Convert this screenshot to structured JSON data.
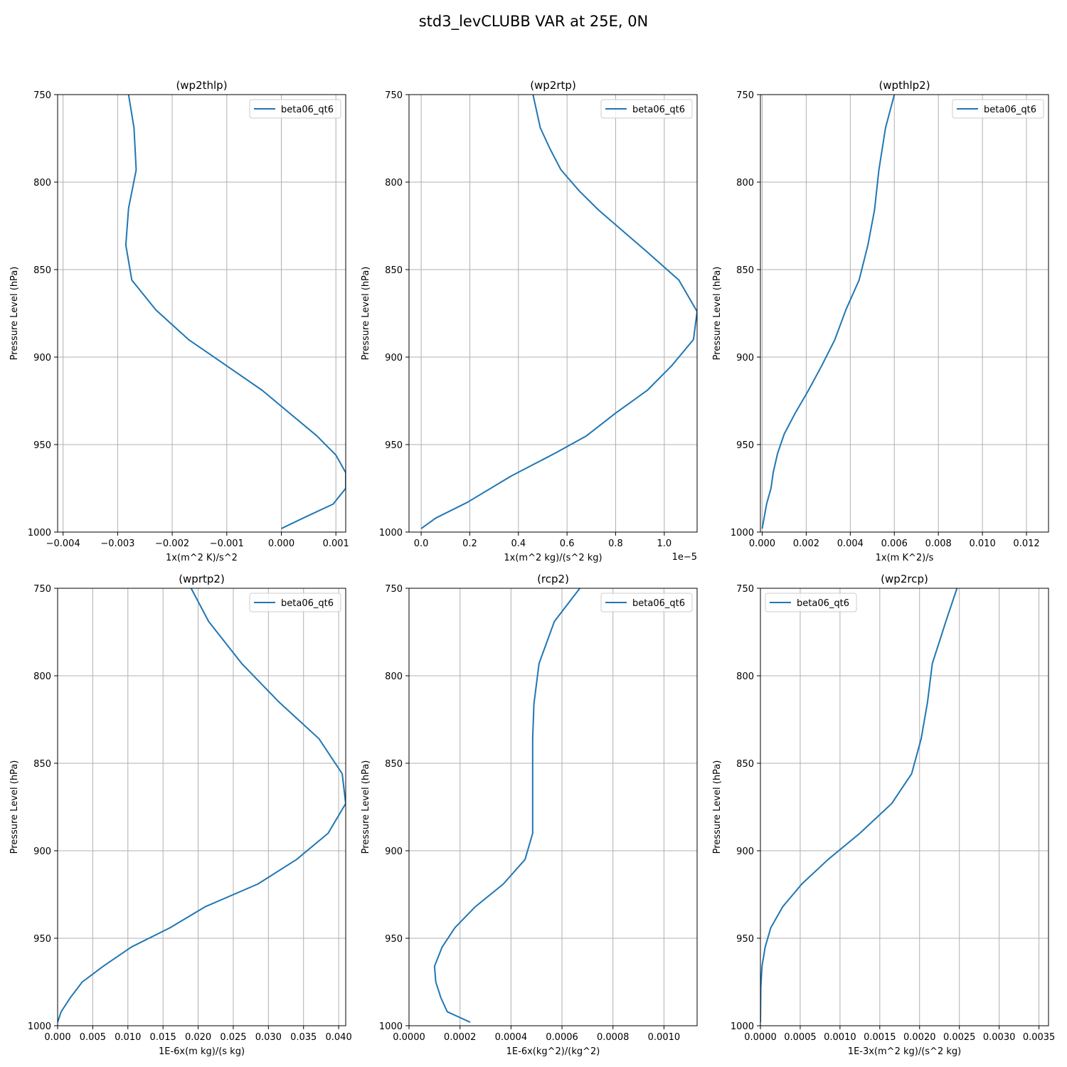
{
  "figure_title": "std3_levCLUBB VAR at 25E, 0N",
  "chart_data": [
    {
      "type": "line",
      "title": "(wp2thlp)",
      "xlabel": "1x(m^2 K)/s^2",
      "ylabel": "Pressure Level (hPa)",
      "xlim": [
        -0.0041,
        0.00118
      ],
      "ylim": [
        1000,
        750
      ],
      "xticks": [
        -0.004,
        -0.003,
        -0.002,
        -0.001,
        0.0,
        0.001
      ],
      "xtick_labels": [
        "−0.004",
        "−0.003",
        "−0.002",
        "−0.001",
        "0.000",
        "0.001"
      ],
      "x_offset_label": "",
      "yticks": [
        750,
        800,
        850,
        900,
        950,
        1000
      ],
      "grid": true,
      "legend_loc": "upper-right",
      "series": [
        {
          "name": "beta06_qt6",
          "color": "#1f77b4",
          "x": [
            -0.0028,
            -0.0027,
            -0.00266,
            -0.0028,
            -0.00285,
            -0.00274,
            -0.0023,
            -0.0017,
            -0.001,
            -0.00035,
            0.00015,
            0.00065,
            0.001,
            0.00118,
            0.00118,
            0.00095,
            0.0004,
            0.0
          ],
          "y": [
            750,
            769,
            793,
            815,
            836,
            856,
            873,
            890,
            905,
            919,
            932,
            945,
            956,
            966,
            975,
            984,
            992,
            998
          ]
        }
      ]
    },
    {
      "type": "line",
      "title": "(wp2rtp)",
      "xlabel": "1x(m^2 kg)/(s^2 kg)",
      "ylabel": "Pressure Level (hPa)",
      "xlim": [
        -0.05,
        1.135
      ],
      "ylim": [
        1000,
        750
      ],
      "xticks": [
        0.0,
        0.2,
        0.4,
        0.6,
        0.8,
        1.0
      ],
      "xtick_labels": [
        "0.0",
        "0.2",
        "0.4",
        "0.6",
        "0.8",
        "1.0"
      ],
      "x_offset_label": "1e−5",
      "yticks": [
        750,
        800,
        850,
        900,
        950,
        1000
      ],
      "grid": true,
      "legend_loc": "upper-right",
      "series": [
        {
          "name": "beta06_qt6",
          "color": "#1f77b4",
          "x": [
            0.46,
            0.49,
            0.53,
            0.575,
            0.65,
            0.73,
            0.83,
            0.93,
            1.06,
            1.135,
            1.12,
            1.03,
            0.93,
            0.8,
            0.68,
            0.55,
            0.37,
            0.19,
            0.06,
            0.0
          ],
          "y": [
            750,
            769,
            781,
            793,
            805,
            816,
            828,
            840,
            856,
            874,
            890,
            905,
            919,
            932,
            945,
            955,
            968,
            983,
            992,
            998
          ]
        }
      ]
    },
    {
      "type": "line",
      "title": "(wpthlp2)",
      "xlabel": "1x(m K^2)/s",
      "ylabel": "Pressure Level (hPa)",
      "xlim": [
        -8e-05,
        0.013
      ],
      "ylim": [
        1000,
        750
      ],
      "xticks": [
        0.0,
        0.002,
        0.004,
        0.006,
        0.008,
        0.01,
        0.012
      ],
      "xtick_labels": [
        "0.000",
        "0.002",
        "0.004",
        "0.006",
        "0.008",
        "0.010",
        "0.012"
      ],
      "x_offset_label": "",
      "yticks": [
        750,
        800,
        850,
        900,
        950,
        1000
      ],
      "grid": true,
      "legend_loc": "upper-right",
      "series": [
        {
          "name": "beta06_qt6",
          "color": "#1f77b4",
          "x": [
            0.006,
            0.0056,
            0.0053,
            0.0051,
            0.0048,
            0.0044,
            0.0038,
            0.0033,
            0.0027,
            0.0021,
            0.0015,
            0.001,
            0.0007,
            0.0005,
            0.0004,
            0.0002,
            0.0
          ],
          "y": [
            750,
            769,
            793,
            816,
            836,
            856,
            873,
            890,
            905,
            919,
            932,
            944,
            955,
            966,
            975,
            984,
            998
          ]
        }
      ]
    },
    {
      "type": "line",
      "title": "(wprtp2)",
      "xlabel": "1E-6x(m kg)/(s kg)",
      "ylabel": "Pressure Level (hPa)",
      "xlim": [
        0.0,
        0.041
      ],
      "ylim": [
        1000,
        750
      ],
      "xticks": [
        0.0,
        0.005,
        0.01,
        0.015,
        0.02,
        0.025,
        0.03,
        0.035,
        0.04
      ],
      "xtick_labels": [
        "0.000",
        "0.005",
        "0.010",
        "0.015",
        "0.020",
        "0.025",
        "0.030",
        "0.035",
        "0.040"
      ],
      "x_offset_label": "",
      "yticks": [
        750,
        800,
        850,
        900,
        950,
        1000
      ],
      "grid": true,
      "legend_loc": "upper-right",
      "series": [
        {
          "name": "beta06_qt6",
          "color": "#1f77b4",
          "x": [
            0.019,
            0.0215,
            0.0262,
            0.0315,
            0.0372,
            0.0405,
            0.041,
            0.0385,
            0.034,
            0.0285,
            0.021,
            0.016,
            0.0105,
            0.0065,
            0.0035,
            0.0018,
            0.0005,
            0.0
          ],
          "y": [
            750,
            769,
            793,
            815,
            836,
            856,
            873,
            890,
            905,
            919,
            932,
            944,
            955,
            966,
            975,
            984,
            992,
            998
          ]
        }
      ]
    },
    {
      "type": "line",
      "title": "(rcp2)",
      "xlabel": "1E-6x(kg^2)/(kg^2)",
      "ylabel": "Pressure Level (hPa)",
      "xlim": [
        0.0,
        0.00113
      ],
      "ylim": [
        1000,
        750
      ],
      "xticks": [
        0.0,
        0.0002,
        0.0004,
        0.0006,
        0.0008,
        0.001
      ],
      "xtick_labels": [
        "0.0000",
        "0.0002",
        "0.0004",
        "0.0006",
        "0.0008",
        "0.0010"
      ],
      "x_offset_label": "",
      "yticks": [
        750,
        800,
        850,
        900,
        950,
        1000
      ],
      "grid": true,
      "legend_loc": "upper-right",
      "series": [
        {
          "name": "beta06_qt6",
          "color": "#1f77b4",
          "x": [
            0.00067,
            0.00057,
            0.00051,
            0.00049,
            0.000485,
            0.000485,
            0.000485,
            0.000455,
            0.00037,
            0.00026,
            0.00018,
            0.00013,
            0.0001,
            0.000105,
            0.000125,
            0.00015,
            0.00024
          ],
          "y": [
            750,
            769,
            793,
            816,
            836,
            856,
            890,
            905,
            919,
            932,
            944,
            955,
            966,
            975,
            984,
            992,
            998
          ]
        }
      ]
    },
    {
      "type": "line",
      "title": "(wp2rcp)",
      "xlabel": "1E-3x(m^2 kg)/(s^2 kg)",
      "ylabel": "Pressure Level (hPa)",
      "xlim": [
        0.0,
        0.00362
      ],
      "ylim": [
        1000,
        750
      ],
      "xticks": [
        0.0,
        0.0005,
        0.001,
        0.0015,
        0.002,
        0.0025,
        0.003,
        0.0035
      ],
      "xtick_labels": [
        "0.0000",
        "0.0005",
        "0.0010",
        "0.0015",
        "0.0020",
        "0.0025",
        "0.0030",
        "0.0035"
      ],
      "x_offset_label": "",
      "yticks": [
        750,
        800,
        850,
        900,
        950,
        1000
      ],
      "grid": true,
      "legend_loc": "upper-left",
      "series": [
        {
          "name": "beta06_qt6",
          "color": "#1f77b4",
          "x": [
            0.00247,
            0.00233,
            0.00216,
            0.0021,
            0.00202,
            0.0019,
            0.00165,
            0.00125,
            0.00085,
            0.00052,
            0.00028,
            0.00013,
            6e-05,
            2e-05,
            5e-06,
            0.0
          ],
          "y": [
            750,
            769,
            793,
            815,
            836,
            856,
            873,
            890,
            905,
            919,
            932,
            944,
            955,
            966,
            978,
            998
          ]
        }
      ]
    }
  ]
}
